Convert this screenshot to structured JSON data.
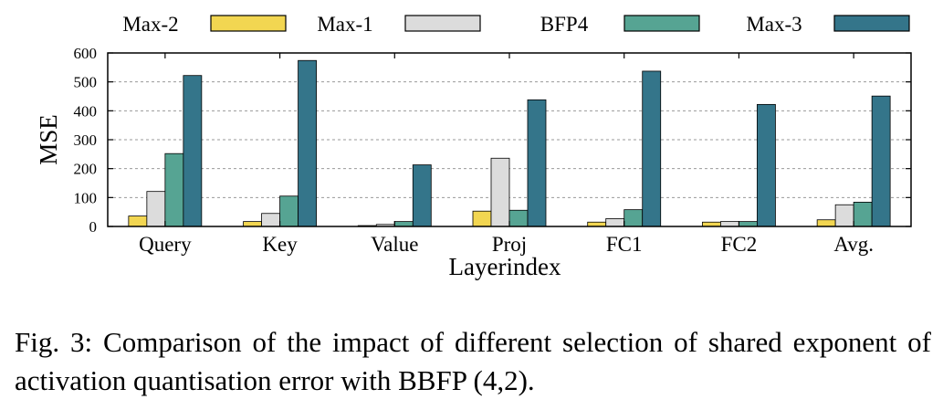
{
  "chart_data": {
    "type": "bar",
    "categories": [
      "Query",
      "Key",
      "Value",
      "Proj",
      "FC1",
      "FC2",
      "Avg."
    ],
    "series": [
      {
        "name": "Max-2",
        "color": "#f2d651",
        "values": [
          36,
          17,
          3,
          53,
          15,
          15,
          23
        ]
      },
      {
        "name": "Max-1",
        "color": "#dcdcdc",
        "values": [
          121,
          45,
          7,
          236,
          27,
          17,
          75
        ]
      },
      {
        "name": "BFP4",
        "color": "#56a493",
        "values": [
          252,
          105,
          17,
          56,
          58,
          17,
          84
        ]
      },
      {
        "name": "Max-3",
        "color": "#34758a",
        "values": [
          522,
          574,
          213,
          438,
          537,
          422,
          451
        ]
      }
    ],
    "xlabel": "Layerindex",
    "ylabel": "MSE",
    "ylim": [
      0,
      600
    ],
    "yticks": [
      0,
      100,
      200,
      300,
      400,
      500,
      600
    ],
    "grid": "horizontal dashed",
    "legend_position": "top"
  },
  "caption": {
    "label": "Fig. 3:",
    "text": "Comparison of the impact of different selection of shared exponent of activation quantisation error with BBFP (4,2)."
  }
}
